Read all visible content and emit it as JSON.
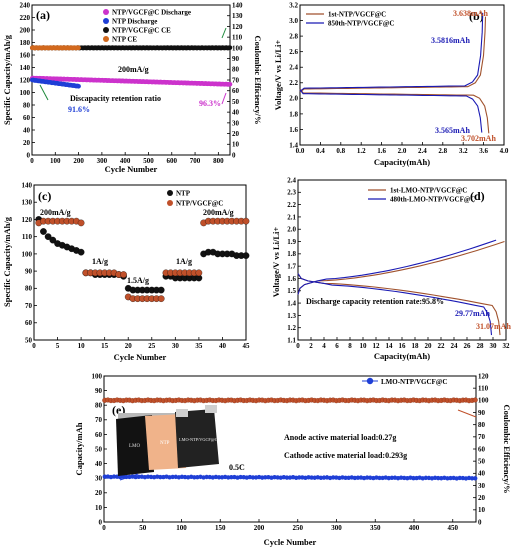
{
  "colors": {
    "purple": "#cc33cc",
    "blue": "#1f3fd6",
    "black": "#111111",
    "orange": "#d2691e",
    "brown": "#a0522d",
    "darkblue": "#1a1ab4"
  },
  "chart_data": [
    {
      "id": "a",
      "panel_label": "(a)",
      "type": "scatter",
      "xlabel": "Cycle Number",
      "ylabel": "Specific Capacity/mAh/g",
      "ylabel2": "Coulombic Efficiency/%",
      "xlim": [
        0,
        850
      ],
      "ylim": [
        0,
        240
      ],
      "ylim2": [
        0,
        140
      ],
      "xticks": [
        0,
        100,
        200,
        300,
        400,
        500,
        600,
        700,
        800
      ],
      "yticks": [
        0,
        20,
        40,
        60,
        80,
        100,
        120,
        140,
        160,
        180,
        200,
        220,
        240
      ],
      "yticks2": [
        0,
        10,
        20,
        30,
        40,
        50,
        60,
        70,
        80,
        90,
        100,
        110,
        120,
        130,
        140
      ],
      "legend": [
        "NTP/VGCF@C Discharge",
        "NTP Discharge",
        "NTP/VGCF@C CE",
        "NTP CE"
      ],
      "series": [
        {
          "name": "NTP/VGCF@C Discharge",
          "x": [
            1,
            850
          ],
          "y": [
            123,
            113
          ],
          "color": "#cc33cc",
          "axis": "left"
        },
        {
          "name": "NTP Discharge",
          "x": [
            1,
            200
          ],
          "y": [
            120,
            110
          ],
          "color": "#1f3fd6",
          "axis": "left"
        },
        {
          "name": "NTP/VGCF@C CE",
          "x": [
            1,
            850
          ],
          "y": [
            100,
            100
          ],
          "color": "#111111",
          "axis": "right"
        },
        {
          "name": "NTP CE",
          "x": [
            1,
            200
          ],
          "y": [
            100,
            100
          ],
          "color": "#d2691e",
          "axis": "right"
        }
      ],
      "annotations": [
        "200mA/g",
        "Discapacity retention ratio",
        "91.6%",
        "96.3%"
      ]
    },
    {
      "id": "b",
      "panel_label": "(b)",
      "type": "line",
      "xlabel": "Capacity(mAh)",
      "ylabel": "Voltage/V vs Li/Li+",
      "xlim": [
        0,
        4.0
      ],
      "ylim": [
        1.4,
        3.2
      ],
      "xticks": [
        "0.0",
        "0.4",
        "0.8",
        "1.2",
        "1.6",
        "2.0",
        "2.4",
        "2.8",
        "3.2",
        "3.6",
        "4.0"
      ],
      "yticks": [
        "1.4",
        "1.6",
        "1.8",
        "2.0",
        "2.2",
        "2.4",
        "2.6",
        "2.8",
        "3.0",
        "3.2"
      ],
      "legend": [
        "1st-NTP/VGCF@C",
        "850th-NTP/VGCF@C"
      ],
      "series": [
        {
          "name": "1st-NTP/VGCF@C",
          "color": "#a0522d",
          "charge_end": 3.638,
          "discharge_end": 3.702
        },
        {
          "name": "850th-NTP/VGCF@C",
          "color": "#1a1ab4",
          "charge_end": 3.5816,
          "discharge_end": 3.565
        }
      ],
      "annotations": [
        "3.638mAh",
        "3.5816mAh",
        "3.565mAh",
        "3.702mAh"
      ]
    },
    {
      "id": "c",
      "panel_label": "(c)",
      "type": "scatter",
      "xlabel": "Cycle Number",
      "ylabel": "Specific Capacity/mAh/g",
      "xlim": [
        0,
        45
      ],
      "ylim": [
        50,
        140
      ],
      "xticks": [
        0,
        5,
        10,
        15,
        20,
        25,
        30,
        35,
        40,
        45
      ],
      "yticks": [
        50,
        60,
        70,
        80,
        90,
        100,
        110,
        120,
        130,
        140
      ],
      "legend": [
        "NTP",
        "NTP/VGCF@C"
      ],
      "rates": [
        "200mA/g",
        "1A/g",
        "1.5A/g",
        "1A/g",
        "200mA/g"
      ],
      "series": [
        {
          "name": "NTP",
          "color": "#111111",
          "x": [
            1,
            2,
            3,
            4,
            5,
            6,
            7,
            8,
            9,
            10,
            11,
            12,
            13,
            14,
            15,
            16,
            17,
            18,
            19,
            20,
            21,
            22,
            23,
            24,
            25,
            26,
            27,
            28,
            29,
            30,
            31,
            32,
            33,
            34,
            35,
            36,
            37,
            38,
            39,
            40,
            41,
            42,
            43,
            44,
            45
          ],
          "y": [
            120,
            113,
            110,
            108,
            106,
            105,
            104,
            103,
            102,
            101,
            89,
            89,
            88,
            88,
            88,
            88,
            88,
            88,
            87,
            80,
            79,
            79,
            79,
            79,
            79,
            79,
            79,
            87,
            87,
            86,
            86,
            86,
            86,
            86,
            86,
            100,
            101,
            101,
            100,
            100,
            100,
            100,
            99,
            99,
            99
          ]
        },
        {
          "name": "NTP/VGCF@C",
          "color": "#c0502a",
          "x": [
            1,
            2,
            3,
            4,
            5,
            6,
            7,
            8,
            9,
            10,
            11,
            12,
            13,
            14,
            15,
            16,
            17,
            18,
            19,
            20,
            21,
            22,
            23,
            24,
            25,
            26,
            27,
            28,
            29,
            30,
            31,
            32,
            33,
            34,
            35,
            36,
            37,
            38,
            39,
            40,
            41,
            42,
            43,
            44,
            45
          ],
          "y": [
            118,
            119,
            119,
            119,
            119,
            119,
            119,
            119,
            119,
            118,
            89,
            89,
            89,
            89,
            89,
            89,
            89,
            88,
            88,
            75,
            74,
            74,
            74,
            74,
            74,
            74,
            74,
            89,
            89,
            89,
            89,
            89,
            89,
            89,
            89,
            118,
            119,
            119,
            119,
            119,
            119,
            119,
            119,
            119,
            119
          ]
        }
      ]
    },
    {
      "id": "d",
      "panel_label": "(d)",
      "type": "line",
      "xlabel": "Capacity(mAh)",
      "ylabel": "Voltage/V vs Li/Li+",
      "xlim": [
        0,
        32
      ],
      "ylim": [
        1.1,
        2.4
      ],
      "xticks": [
        0,
        2,
        4,
        6,
        8,
        10,
        12,
        14,
        16,
        18,
        20,
        22,
        24,
        26,
        28,
        30,
        32
      ],
      "yticks": [
        "1.1",
        "1.2",
        "1.3",
        "1.4",
        "1.5",
        "1.6",
        "1.7",
        "1.8",
        "1.9",
        "2.0",
        "2.1",
        "2.2",
        "2.3",
        "2.4"
      ],
      "legend": [
        "1st-LMO-NTP/VGCF@C",
        "480th-LMO-NTP/VGCF@C"
      ],
      "series": [
        {
          "name": "1st-LMO-NTP/VGCF@C",
          "color": "#a0522d",
          "discharge_end": 31.07
        },
        {
          "name": "480th-LMO-NTP/VGCF@C",
          "color": "#1a1ab4",
          "discharge_end": 29.77
        }
      ],
      "annotations": [
        "Discharge capacity retention rate:95.8%",
        "29.77mAh",
        "31.07mAh"
      ]
    },
    {
      "id": "e",
      "panel_label": "(e)",
      "type": "scatter",
      "xlabel": "Cycle Number",
      "ylabel": "Capacity/mAh",
      "ylabel2": "Coulombic Efficiency/%",
      "xlim": [
        0,
        480
      ],
      "ylim": [
        0,
        100
      ],
      "ylim2": [
        0,
        120
      ],
      "xticks": [
        0,
        50,
        100,
        150,
        200,
        250,
        300,
        350,
        400,
        450
      ],
      "yticks": [
        0,
        10,
        20,
        30,
        40,
        50,
        60,
        70,
        80,
        90,
        100
      ],
      "yticks2": [
        0,
        10,
        20,
        30,
        40,
        50,
        60,
        70,
        80,
        90,
        100,
        110,
        120
      ],
      "legend": [
        "LMO-NTP/VGCF@C"
      ],
      "series": [
        {
          "name": "capacity",
          "color": "#1f3fd6",
          "y_start": 31,
          "y_end": 30
        },
        {
          "name": "CE",
          "color": "#c0502a",
          "y": 100,
          "axis": "right"
        }
      ],
      "photo_labels": [
        "LMO",
        "NTP",
        "LMO-NTP/VGCF@C"
      ],
      "annotations": [
        "Anode active material load:0.27g",
        "Cathode active material load:0.293g",
        "0.5C"
      ]
    }
  ]
}
